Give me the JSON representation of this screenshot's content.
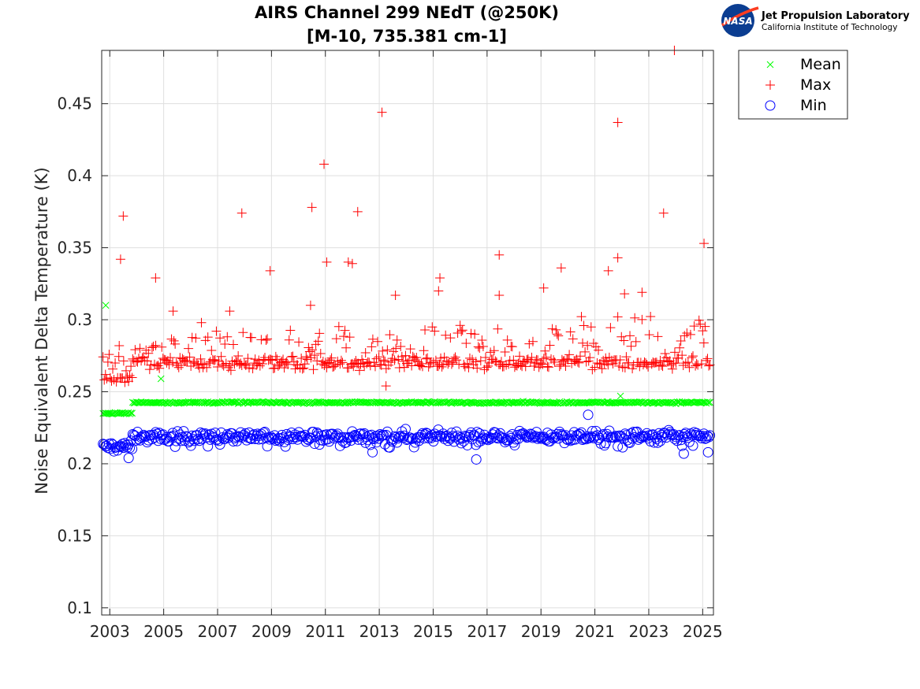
{
  "logo": {
    "badge_text": "NASA",
    "line1": "Jet Propulsion Laboratory",
    "line2": "California Institute of Technology"
  },
  "chart_data": {
    "type": "scatter",
    "title": "AIRS Channel 299 NEdT (@250K)",
    "subtitle": "[M-10, 735.381 cm-1]",
    "xlabel": "",
    "ylabel": "Noise Equivalent Delta Temperature (K)",
    "xlim": [
      2002.7,
      2025.4
    ],
    "ylim": [
      0.095,
      0.487
    ],
    "xticks": [
      2003,
      2005,
      2007,
      2009,
      2011,
      2013,
      2015,
      2017,
      2019,
      2021,
      2023,
      2025
    ],
    "yticks": [
      0.1,
      0.15,
      0.2,
      0.25,
      0.3,
      0.35,
      0.4,
      0.45
    ],
    "grid": true,
    "legend_position": "outside-top-right",
    "series": [
      {
        "name": "Mean",
        "marker": "x",
        "color": "#00ff00",
        "segments": [
          {
            "x": [
              2002.75,
              2003.85
            ],
            "level": 0.235
          },
          {
            "x": [
              2003.85,
              2025.3
            ],
            "level": 0.2425
          }
        ],
        "outliers": [
          {
            "x": 2002.85,
            "y": 0.31
          },
          {
            "x": 2021.95,
            "y": 0.247
          },
          {
            "x": 2004.9,
            "y": 0.259
          }
        ]
      },
      {
        "name": "Max",
        "marker": "+",
        "color": "#ff0000",
        "segments": [
          {
            "x": [
              2002.75,
              2003.85
            ],
            "level": 0.259
          },
          {
            "x": [
              2003.85,
              2025.3
            ],
            "level": 0.27
          }
        ],
        "outliers": [
          {
            "x": 2003.4,
            "y": 0.342
          },
          {
            "x": 2003.5,
            "y": 0.372
          },
          {
            "x": 2003.35,
            "y": 0.282
          },
          {
            "x": 2004.7,
            "y": 0.329
          },
          {
            "x": 2005.35,
            "y": 0.306
          },
          {
            "x": 2006.4,
            "y": 0.298
          },
          {
            "x": 2007.45,
            "y": 0.306
          },
          {
            "x": 2007.9,
            "y": 0.374
          },
          {
            "x": 2008.95,
            "y": 0.334
          },
          {
            "x": 2010.5,
            "y": 0.378
          },
          {
            "x": 2010.45,
            "y": 0.31
          },
          {
            "x": 2010.95,
            "y": 0.408
          },
          {
            "x": 2011.05,
            "y": 0.34
          },
          {
            "x": 2011.85,
            "y": 0.34
          },
          {
            "x": 2012.0,
            "y": 0.339
          },
          {
            "x": 2012.2,
            "y": 0.375
          },
          {
            "x": 2013.1,
            "y": 0.444
          },
          {
            "x": 2013.25,
            "y": 0.254
          },
          {
            "x": 2013.6,
            "y": 0.317
          },
          {
            "x": 2015.25,
            "y": 0.329
          },
          {
            "x": 2015.2,
            "y": 0.32
          },
          {
            "x": 2017.45,
            "y": 0.345
          },
          {
            "x": 2017.45,
            "y": 0.317
          },
          {
            "x": 2019.1,
            "y": 0.322
          },
          {
            "x": 2019.75,
            "y": 0.336
          },
          {
            "x": 2021.5,
            "y": 0.334
          },
          {
            "x": 2021.85,
            "y": 0.437
          },
          {
            "x": 2021.85,
            "y": 0.343
          },
          {
            "x": 2022.1,
            "y": 0.318
          },
          {
            "x": 2022.75,
            "y": 0.319
          },
          {
            "x": 2023.55,
            "y": 0.374
          },
          {
            "x": 2023.95,
            "y": 0.487
          },
          {
            "x": 2025.05,
            "y": 0.353
          }
        ]
      },
      {
        "name": "Min",
        "marker": "o",
        "color": "#0000ff",
        "segments": [
          {
            "x": [
              2002.75,
              2003.85
            ],
            "level": 0.212
          },
          {
            "x": [
              2003.85,
              2025.3
            ],
            "level": 0.219
          }
        ],
        "outliers": [
          {
            "x": 2016.6,
            "y": 0.203
          },
          {
            "x": 2020.75,
            "y": 0.234
          },
          {
            "x": 2024.3,
            "y": 0.207
          },
          {
            "x": 2025.2,
            "y": 0.208
          },
          {
            "x": 2012.75,
            "y": 0.208
          },
          {
            "x": 2003.7,
            "y": 0.204
          }
        ]
      }
    ]
  }
}
